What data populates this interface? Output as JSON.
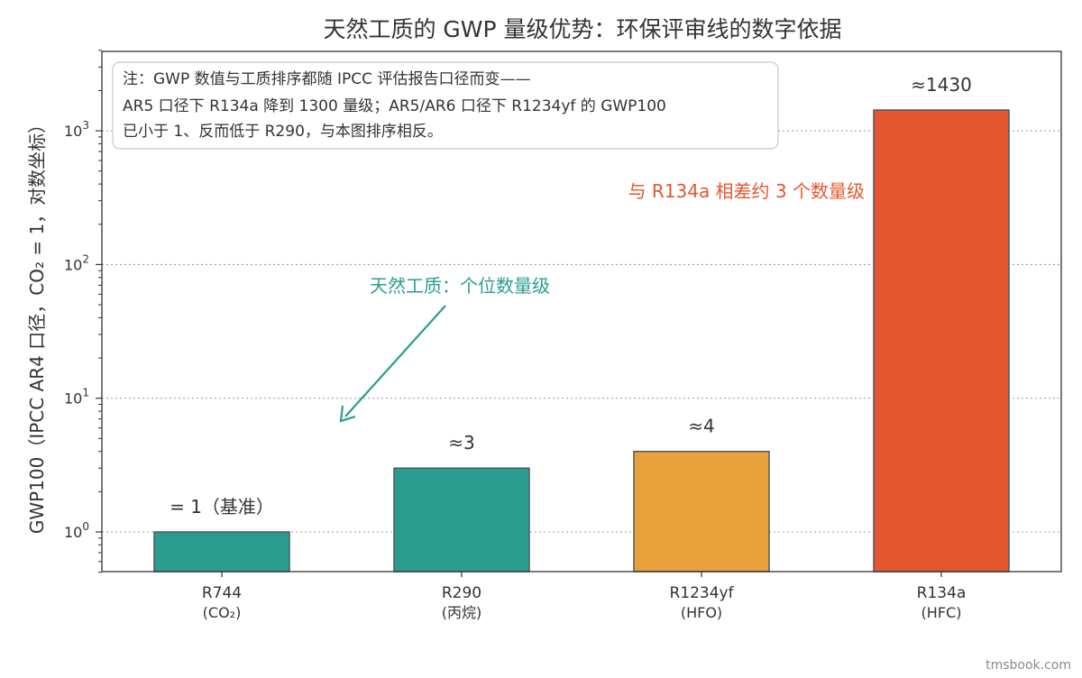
{
  "chart_data": {
    "type": "bar",
    "title": "天然工质的 GWP 量级优势：环保评审线的数字依据",
    "ylabel": "GWP100（IPCC AR4 口径，CO₂ = 1，对数坐标）",
    "yscale": "log",
    "ylim": [
      0.5,
      4000
    ],
    "y_ticks": [
      {
        "value": 1,
        "base": "10",
        "exp": "0"
      },
      {
        "value": 10,
        "base": "10",
        "exp": "1"
      },
      {
        "value": 100,
        "base": "10",
        "exp": "2"
      },
      {
        "value": 1000,
        "base": "10",
        "exp": "3"
      }
    ],
    "grid": "horizontal dotted",
    "bars": [
      {
        "name": "R744",
        "sub": "(CO₂)",
        "value": 1,
        "label": "= 1（基准）",
        "color": "#2a9d8f"
      },
      {
        "name": "R290",
        "sub": "(丙烷)",
        "value": 3,
        "label": "≈3",
        "color": "#2a9d8f"
      },
      {
        "name": "R1234yf",
        "sub": "(HFO)",
        "value": 4,
        "label": "≈4",
        "color": "#e9a23b"
      },
      {
        "name": "R134a",
        "sub": "(HFC)",
        "value": 1430,
        "label": "≈1430",
        "color": "#e4572e"
      }
    ],
    "bar_edge_color": "#4a5a63",
    "annotations": {
      "natural": "天然工质：个位数量级",
      "r134a": "与 R134a 相差约 3 个数量级"
    },
    "note": [
      "注：GWP 数值与工质排序都随 IPCC 评估报告口径而变——",
      "AR5 口径下 R134a 降到 1300 量级；AR5/AR6 口径下 R1234yf 的 GWP100",
      "已小于 1、反而低于 R290，与本图排序相反。"
    ]
  },
  "watermark": "tmsbook.com"
}
